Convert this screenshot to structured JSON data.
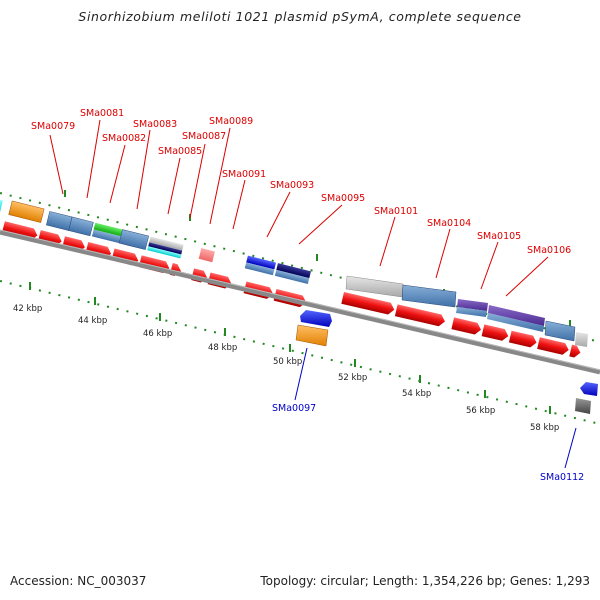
{
  "title": "Sinorhizobium meliloti 1021 plasmid pSymA, complete sequence",
  "footer": {
    "accession": "Accession: NC_003037",
    "info": "Topology: circular; Length: 1,354,226 bp; Genes: 1,293"
  },
  "colors": {
    "forward_cds": "#ee1111",
    "leader_top": "#dd0000",
    "leader_bottom": "#0000cc",
    "dotted_track": "#228822",
    "axis": "#777777"
  },
  "top_gene_labels": [
    {
      "id": "SMa0079",
      "label": "SMa0079"
    },
    {
      "id": "SMa0081",
      "label": "SMa0081"
    },
    {
      "id": "SMa0082",
      "label": "SMa0082"
    },
    {
      "id": "SMa0083",
      "label": "SMa0083"
    },
    {
      "id": "SMa0085",
      "label": "SMa0085"
    },
    {
      "id": "SMa0087",
      "label": "SMa0087"
    },
    {
      "id": "SMa0089",
      "label": "SMa0089"
    },
    {
      "id": "SMa0091",
      "label": "SMa0091"
    },
    {
      "id": "SMa0093",
      "label": "SMa0093"
    },
    {
      "id": "SMa0095",
      "label": "SMa0095"
    },
    {
      "id": "SMa0101",
      "label": "SMa0101"
    },
    {
      "id": "SMa0104",
      "label": "SMa0104"
    },
    {
      "id": "SMa0105",
      "label": "SMa0105"
    },
    {
      "id": "SMa0106",
      "label": "SMa0106"
    }
  ],
  "bottom_gene_labels": [
    {
      "id": "SMa0097",
      "label": "SMa0097"
    },
    {
      "id": "SMa0112",
      "label": "SMa0112"
    }
  ],
  "scale_ticks": [
    "42 kbp",
    "44 kbp",
    "46 kbp",
    "48 kbp",
    "50 kbp",
    "52 kbp",
    "54 kbp",
    "56 kbp",
    "58 kbp"
  ]
}
